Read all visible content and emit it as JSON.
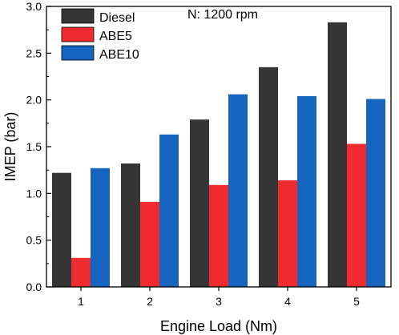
{
  "chart_data": {
    "type": "bar",
    "annotation": "N: 1200 rpm",
    "xlabel": "Engine Load (Nm)",
    "ylabel": "IMEP (bar)",
    "categories": [
      "1",
      "2",
      "3",
      "4",
      "5"
    ],
    "ylim": [
      0,
      3.0
    ],
    "yticks": [
      "0.0",
      "0.5",
      "1.0",
      "1.5",
      "2.0",
      "2.5",
      "3.0"
    ],
    "grid": false,
    "legend_position": "top-left",
    "series": [
      {
        "name": "Diesel",
        "color": "#353535",
        "values": [
          1.22,
          1.32,
          1.79,
          2.35,
          2.83
        ]
      },
      {
        "name": "ABE5",
        "color": "#ef2b2f",
        "values": [
          0.31,
          0.91,
          1.09,
          1.14,
          1.53
        ]
      },
      {
        "name": "ABE10",
        "color": "#1565c0",
        "values": [
          1.27,
          1.63,
          2.06,
          2.04,
          2.01
        ]
      }
    ]
  }
}
